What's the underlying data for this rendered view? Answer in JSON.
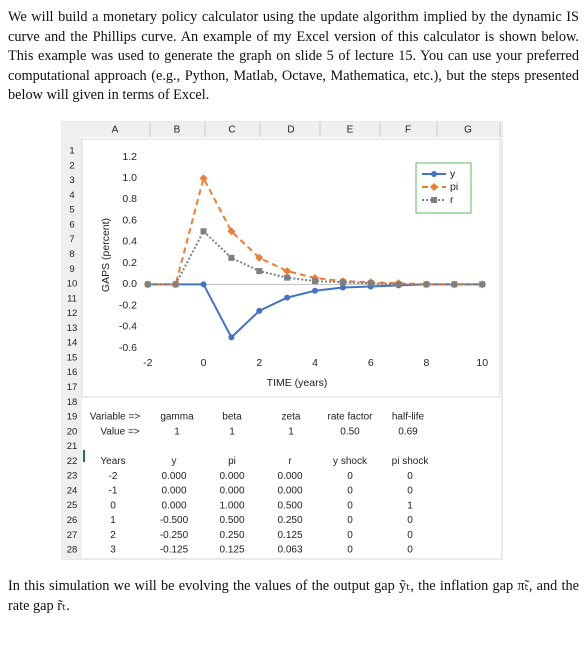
{
  "intro": "We will build a monetary policy calculator using the update algorithm implied by the dynamic IS curve and the Phillips curve. An example of my Excel version of this calculator is shown below. This example was used to generate the graph on slide 5 of lecture 15. You can use your preferred computational approach (e.g., Python, Matlab, Octave, Mathematica, etc.), but the steps presented below will given in terms of Excel.",
  "spreadsheet": {
    "columns": [
      "A",
      "B",
      "C",
      "D",
      "E",
      "F",
      "G"
    ],
    "rows": [
      1,
      2,
      3,
      4,
      5,
      6,
      7,
      8,
      9,
      10,
      11,
      12,
      13,
      14,
      15,
      16,
      17,
      18,
      19,
      20,
      21,
      22,
      23,
      24,
      25,
      26,
      27,
      28
    ],
    "parameters": {
      "labels": [
        "Variable =>",
        "gamma",
        "beta",
        "zeta",
        "rate factor",
        "half-life"
      ],
      "values": [
        "Value =>",
        "1",
        "1",
        "1",
        "0.50",
        "0.69"
      ]
    },
    "table": {
      "header": [
        "Years",
        "y",
        "pi",
        "r",
        "y shock",
        "pi shock"
      ],
      "rows": [
        [
          "-2",
          "0.000",
          "0.000",
          "0.000",
          "0",
          "0"
        ],
        [
          "-1",
          "0.000",
          "0.000",
          "0.000",
          "0",
          "0"
        ],
        [
          "0",
          "0.000",
          "1.000",
          "0.500",
          "0",
          "1"
        ],
        [
          "1",
          "-0.500",
          "0.500",
          "0.250",
          "0",
          "0"
        ],
        [
          "2",
          "-0.250",
          "0.250",
          "0.125",
          "0",
          "0"
        ],
        [
          "3",
          "-0.125",
          "0.125",
          "0.063",
          "0",
          "0"
        ]
      ]
    }
  },
  "chart_data": {
    "type": "line",
    "x_label": "TIME (years)",
    "y_label": "GAPS (percent)",
    "x": [
      -2,
      -1,
      0,
      1,
      2,
      3,
      4,
      5,
      6,
      7,
      8,
      9,
      10
    ],
    "series": [
      {
        "name": "y",
        "color": "#4472c4",
        "marker": "circle",
        "dash": "solid",
        "values": [
          0,
          0,
          0,
          -0.5,
          -0.25,
          -0.125,
          -0.06,
          -0.03,
          -0.02,
          -0.01,
          0,
          0,
          0
        ]
      },
      {
        "name": "pi",
        "color": "#ed7d31",
        "marker": "diamond",
        "dash": "dashed",
        "values": [
          0,
          0,
          1,
          0.5,
          0.25,
          0.125,
          0.06,
          0.03,
          0.02,
          0.01,
          0,
          0,
          0
        ]
      },
      {
        "name": "r",
        "color": "#7f7f7f",
        "marker": "square",
        "dash": "dotted",
        "values": [
          0,
          0,
          0.5,
          0.25,
          0.125,
          0.063,
          0.03,
          0.02,
          0.01,
          0,
          0,
          0,
          0
        ]
      }
    ],
    "xlim": [
      -2.1,
      10.1
    ],
    "ylim": [
      -0.6,
      1.2
    ],
    "xticks": [
      -2,
      0,
      2,
      4,
      6,
      8,
      10
    ],
    "yticks": [
      1.2,
      {
        "value": 1,
        "label": "1.0"
      },
      0.8,
      0.6,
      0.4,
      0.2,
      {
        "value": 0,
        "label": "0.0"
      },
      -0.2,
      -0.4,
      -0.6
    ],
    "legend": "top-right",
    "grid": false
  },
  "outro": "In this simulation we will be evolving the values of the output gap ỹₜ, the inflation gap π̃ₜ, and the rate gap r̃ₜ."
}
